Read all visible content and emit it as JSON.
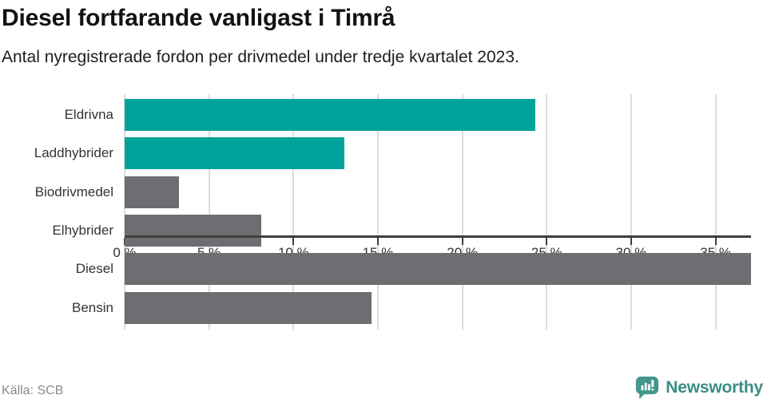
{
  "title": "Diesel fortfarande vanligast i Timrå",
  "subtitle": "Antal nyregistrerade fordon per drivmedel under tredje kvartalet 2023.",
  "source": "Källa: SCB",
  "brand": {
    "name": "Newsworthy",
    "icon": "newsworthy-bubble-chart-icon"
  },
  "colors": {
    "highlight": "#00a39a",
    "default_bar": "#6d6d72",
    "gridline": "#dcdcdc",
    "axis": "#3f3f3f",
    "title_text": "#121212",
    "label_text": "#333333",
    "source_text": "#8a8a8a",
    "brand_icon": "#43978d",
    "brand_text": "#3a8d84"
  },
  "chart_data": {
    "type": "bar",
    "orientation": "horizontal",
    "title": "Diesel fortfarande vanligast i Timrå",
    "subtitle": "Antal nyregistrerade fordon per drivmedel under tredje kvartalet 2023.",
    "categories": [
      "Eldrivna",
      "Laddhybrider",
      "Biodrivmedel",
      "Elhybrider",
      "Diesel",
      "Bensin"
    ],
    "values": [
      24.3,
      13.0,
      3.2,
      8.1,
      37.1,
      14.6
    ],
    "bar_colors": [
      "#00a39a",
      "#00a39a",
      "#6d6d72",
      "#6d6d72",
      "#6d6d72",
      "#6d6d72"
    ],
    "unit": "%",
    "xlabel": "",
    "ylabel": "",
    "xlim": [
      0,
      37.1
    ],
    "ticks": [
      0,
      5,
      10,
      15,
      20,
      25,
      30,
      35
    ],
    "tick_labels": [
      "0 %",
      "5 %",
      "10 %",
      "15 %",
      "20 %",
      "25 %",
      "30 %",
      "35 %"
    ],
    "grid": true,
    "legend": false
  }
}
